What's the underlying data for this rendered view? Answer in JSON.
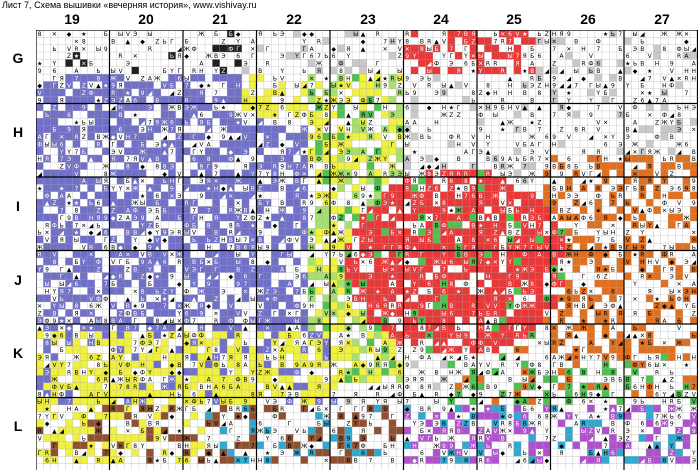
{
  "sheet_title": "Лист 7, Схема вышивки «вечерняя история», www.vishivay.ru",
  "columns": [
    "19",
    "20",
    "21",
    "22",
    "23",
    "24",
    "25",
    "26",
    "27"
  ],
  "rows": [
    "G",
    "H",
    "I",
    "J",
    "K",
    "L"
  ],
  "colors": {
    "white": "#ffffff",
    "gray": "#c8c8c8",
    "blue": "#7070c8",
    "yellow": "#f0f040",
    "red": "#e83838",
    "green": "#50c050",
    "lightgreen": "#a8e070",
    "orange": "#e07020",
    "brown": "#905030",
    "cyan": "#30a8d0",
    "purple": "#b050d0",
    "black": "#202020",
    "gridline": "#000000"
  },
  "chart_symbols": [
    "R",
    "Y",
    "Z",
    "V",
    "A",
    "B",
    "Б",
    "Г",
    "Ф",
    "Ж",
    "Ы",
    "Ь",
    "Э",
    "Я",
    "6",
    "8",
    "7",
    "9",
    "★",
    "◆",
    "▲",
    "✕",
    "◢",
    "H"
  ]
}
